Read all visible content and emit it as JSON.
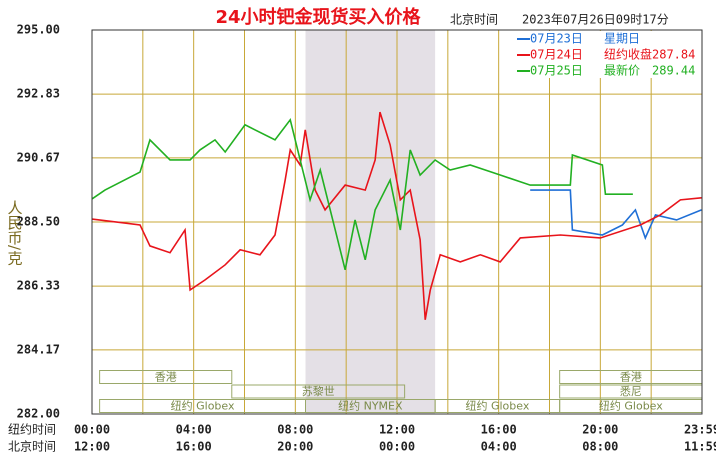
{
  "chart_data": {
    "type": "line",
    "title": "24小时钯金现货买入价格",
    "time_zone_label": "北京时间",
    "timestamp": "2023年07月26日09时17分",
    "y_label": "人民币/克",
    "x_row_labels": [
      "纽约时间",
      "北京时间"
    ],
    "xlim": [
      0,
      24
    ],
    "xticks": [
      {
        "value": 0,
        "label": "00:00"
      },
      {
        "value": 4,
        "label": "04:00"
      },
      {
        "value": 8,
        "label": "08:00"
      },
      {
        "value": 12,
        "label": "12:00"
      },
      {
        "value": 16,
        "label": "16:00"
      },
      {
        "value": 20,
        "label": "20:00"
      },
      {
        "value": 24,
        "label": "23:59"
      }
    ],
    "xticks_beijing": [
      {
        "value": 0,
        "label": "12:00"
      },
      {
        "value": 4,
        "label": "16:00"
      },
      {
        "value": 8,
        "label": "20:00"
      },
      {
        "value": 12,
        "label": "00:00"
      },
      {
        "value": 16,
        "label": "04:00"
      },
      {
        "value": 20,
        "label": "08:00"
      },
      {
        "value": 24,
        "label": "11:59"
      }
    ],
    "xgrid": [
      2,
      6,
      10,
      14,
      18,
      22
    ],
    "ylim": [
      282,
      295
    ],
    "yticks": [
      {
        "value": 295,
        "label": "295.00"
      },
      292.83,
      290.67,
      {
        "value": 288.5,
        "label": "288.50"
      },
      286.33,
      284.17,
      {
        "value": 282,
        "label": "282.00"
      }
    ],
    "grid": true,
    "highlight": [
      8.4,
      13.5
    ],
    "sessions": [
      [
        {
          "label": "香港",
          "start": 0.3,
          "end": 5.5
        },
        {
          "label": "香港",
          "start": 18.4,
          "end": 24
        }
      ],
      [
        {
          "label": "苏黎世",
          "start": 5.5,
          "end": 12.3
        },
        {
          "label": "悉尼",
          "start": 18.4,
          "end": 24
        }
      ],
      [
        {
          "label": "纽约 Globex",
          "start": 0.3,
          "end": 8.4
        },
        {
          "label": "纽约 NYMEX",
          "start": 8.4,
          "end": 13.5
        },
        {
          "label": "纽约 Globex",
          "start": 13.5,
          "end": 18.4
        },
        {
          "label": "纽约 Globex",
          "start": 18.4,
          "end": 24
        }
      ]
    ],
    "series": [
      {
        "name": "07月23日",
        "note": "星期日",
        "color": "#1f6fd6",
        "x": [
          17.24,
          18.82,
          18.9,
          20.08,
          20.87,
          21.38,
          21.77,
          22.17,
          23.0,
          23.98
        ],
        "values": [
          289.58,
          289.58,
          288.23,
          288.06,
          288.4,
          288.91,
          287.96,
          288.74,
          288.57,
          288.91
        ]
      },
      {
        "name": "07月24日",
        "note": "纽约收盘",
        "last": 287.84,
        "color": "#e8141b",
        "x": [
          0,
          1.89,
          2.28,
          3.07,
          3.66,
          3.86,
          4.45,
          5.24,
          5.83,
          6.61,
          7.2,
          7.6,
          7.8,
          8.19,
          8.39,
          8.78,
          9.17,
          9.96,
          10.75,
          11.14,
          11.33,
          11.73,
          12.13,
          12.52,
          12.91,
          13.11,
          13.31,
          13.7,
          14.49,
          15.28,
          16.06,
          16.85,
          18.43,
          20.0,
          21.57,
          22.36,
          23.15,
          23.98
        ],
        "values": [
          288.6,
          288.4,
          287.69,
          287.46,
          288.23,
          286.2,
          286.54,
          287.05,
          287.56,
          287.39,
          288.06,
          289.92,
          290.94,
          290.43,
          291.62,
          289.58,
          288.91,
          289.75,
          289.58,
          290.6,
          292.22,
          291.11,
          289.25,
          289.58,
          287.9,
          285.19,
          286.2,
          287.39,
          287.15,
          287.39,
          287.15,
          287.96,
          288.06,
          287.96,
          288.4,
          288.74,
          289.25,
          289.32
        ]
      },
      {
        "name": "07月25日",
        "note": "最新价",
        "last": 289.44,
        "color": "#22b022",
        "x": [
          0,
          0.51,
          1.89,
          2.28,
          3.07,
          3.86,
          4.25,
          4.84,
          5.24,
          6.02,
          7.2,
          7.8,
          8.19,
          8.58,
          8.98,
          9.57,
          9.96,
          10.35,
          10.75,
          11.14,
          11.73,
          12.13,
          12.52,
          12.91,
          13.5,
          14.09,
          14.88,
          16.06,
          17.24,
          18.82,
          18.9,
          20.08,
          20.2,
          21.28
        ],
        "values": [
          289.28,
          289.58,
          290.19,
          291.28,
          290.6,
          290.6,
          290.94,
          291.28,
          290.87,
          291.79,
          291.28,
          291.96,
          290.6,
          289.25,
          290.26,
          288.23,
          286.88,
          288.57,
          287.22,
          288.91,
          289.92,
          288.23,
          290.94,
          290.09,
          290.6,
          290.26,
          290.43,
          290.09,
          289.75,
          289.75,
          290.77,
          290.43,
          289.44,
          289.44
        ]
      }
    ]
  }
}
